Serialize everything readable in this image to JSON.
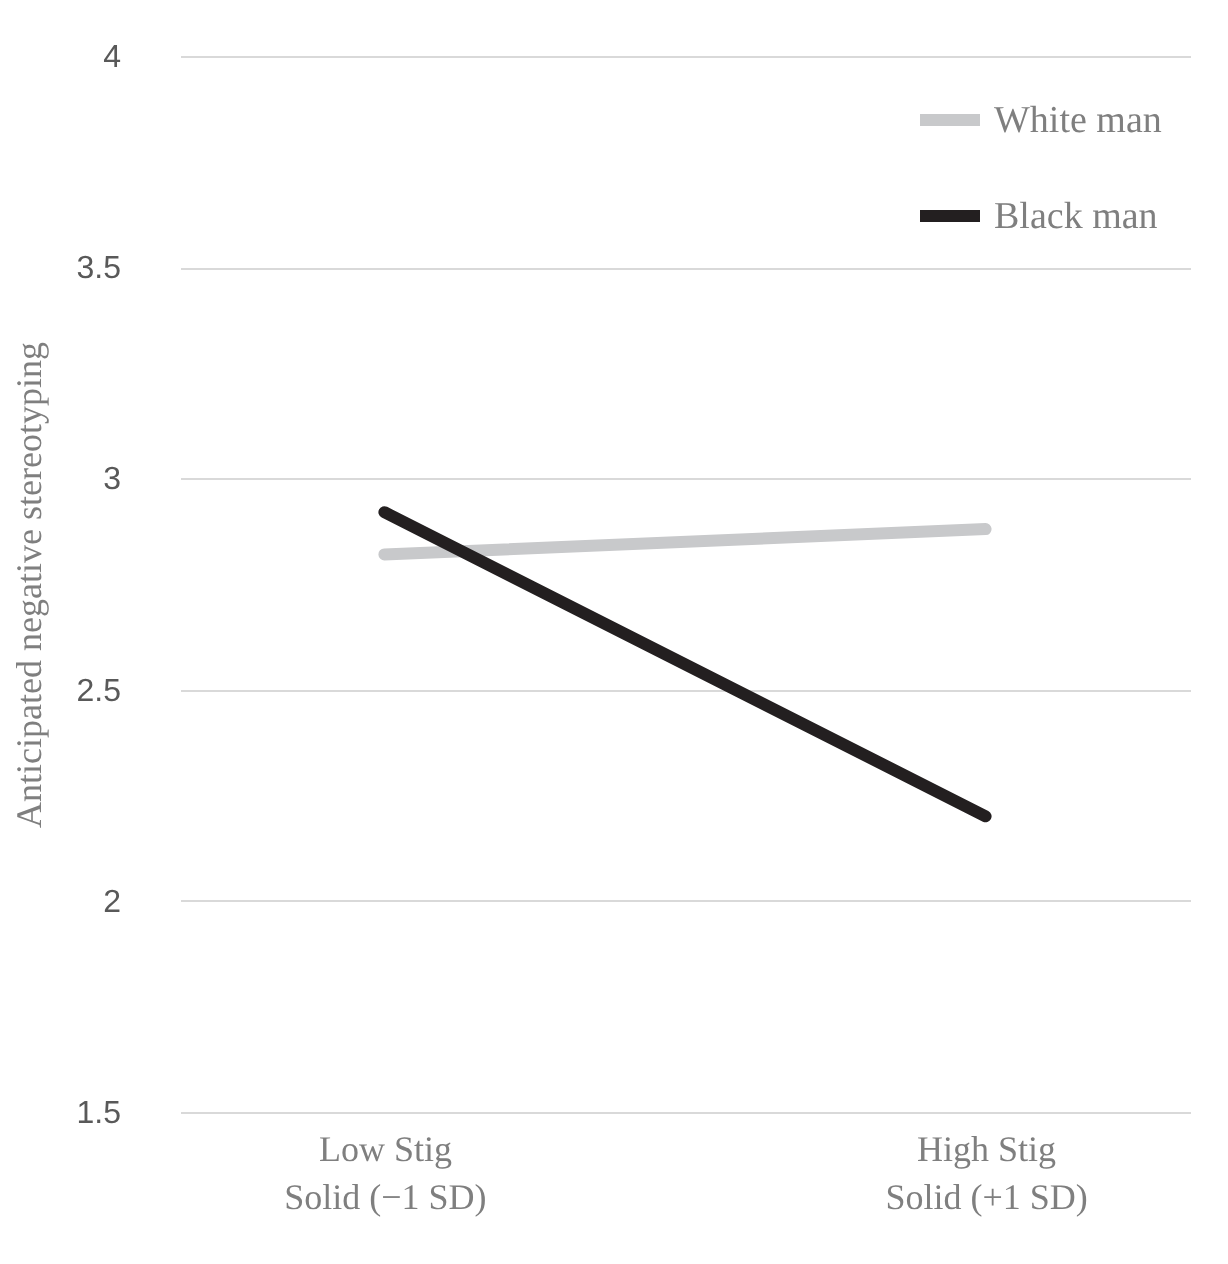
{
  "chart_data": {
    "type": "line",
    "ylabel": "Anticipated negative stereotyping",
    "categories": [
      "Low Stig\nSolid (−1 SD)",
      "High Stig\nSolid (+1 SD)"
    ],
    "series": [
      {
        "name": "White man",
        "color": "#c8c9cb",
        "values": [
          2.82,
          2.88
        ]
      },
      {
        "name": "Black man",
        "color": "#231f20",
        "values": [
          2.92,
          2.2
        ]
      }
    ],
    "ylim": [
      1.5,
      4
    ],
    "yticks": [
      1.5,
      2,
      2.5,
      3,
      3.5,
      4
    ],
    "grid": "y",
    "legend": "top right",
    "marker": "none",
    "line_style": "solid"
  }
}
